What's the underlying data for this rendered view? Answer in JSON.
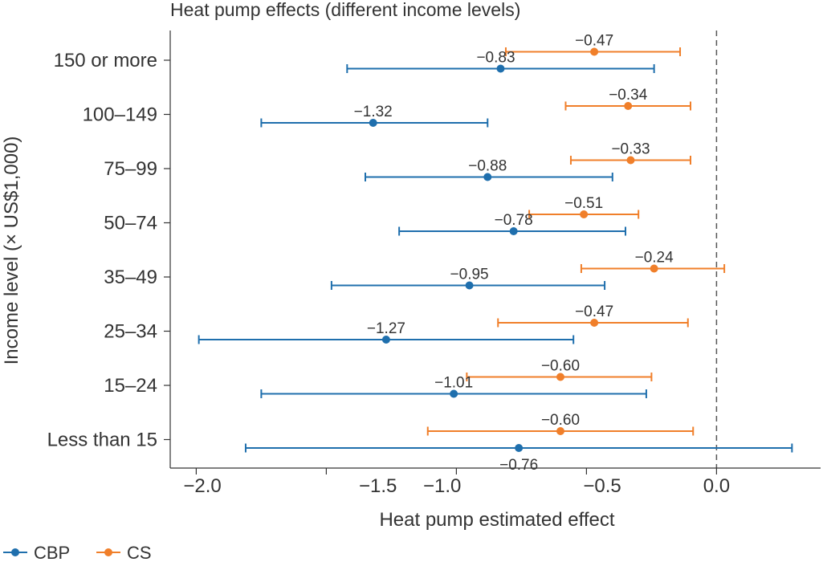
{
  "chart_data": {
    "type": "scatter",
    "title": "Heat pump effects (different income levels)",
    "xlabel": "Heat pump estimated effect",
    "ylabel": "Income level (× US$1,000)",
    "xlim": [
      -2.1,
      0.4
    ],
    "x_tick_labels": [
      {
        "value": -2.0,
        "label": "−2.0"
      },
      {
        "value": -1.5,
        "label": "−1.5"
      },
      {
        "value": -1.0,
        "label": "−1.0"
      },
      {
        "value": -0.5,
        "label": "−0.5"
      },
      {
        "value": 0.0,
        "label": "0.0"
      }
    ],
    "x_tick_marks": [
      -2.0,
      -1.5,
      -1.0,
      -0.5,
      0.0
    ],
    "reference_line": 0.0,
    "categories": [
      "150 or more",
      "100–149",
      "75–99",
      "50–74",
      "35–49",
      "25–34",
      "15–24",
      "Less than 15"
    ],
    "series": [
      {
        "name": "CS",
        "color": "#f07f2a",
        "points": [
          {
            "category": "150 or more",
            "estimate": -0.47,
            "ci_low": -0.81,
            "ci_high": -0.14,
            "label": "−0.47"
          },
          {
            "category": "100–149",
            "estimate": -0.34,
            "ci_low": -0.58,
            "ci_high": -0.1,
            "label": "−0.34"
          },
          {
            "category": "75–99",
            "estimate": -0.33,
            "ci_low": -0.56,
            "ci_high": -0.1,
            "label": "−0.33"
          },
          {
            "category": "50–74",
            "estimate": -0.51,
            "ci_low": -0.72,
            "ci_high": -0.3,
            "label": "−0.51"
          },
          {
            "category": "35–49",
            "estimate": -0.24,
            "ci_low": -0.52,
            "ci_high": 0.03,
            "label": "−0.24"
          },
          {
            "category": "25–34",
            "estimate": -0.47,
            "ci_low": -0.84,
            "ci_high": -0.11,
            "label": "−0.47"
          },
          {
            "category": "15–24",
            "estimate": -0.6,
            "ci_low": -0.96,
            "ci_high": -0.25,
            "label": "−0.60"
          },
          {
            "category": "Less than 15",
            "estimate": -0.6,
            "ci_low": -1.11,
            "ci_high": -0.09,
            "label": "−0.60"
          }
        ]
      },
      {
        "name": "CBP",
        "color": "#1f6fad",
        "points": [
          {
            "category": "150 or more",
            "estimate": -0.83,
            "ci_low": -1.42,
            "ci_high": -0.24,
            "label": "−0.83"
          },
          {
            "category": "100–149",
            "estimate": -1.32,
            "ci_low": -1.75,
            "ci_high": -0.88,
            "label": "−1.32"
          },
          {
            "category": "75–99",
            "estimate": -0.88,
            "ci_low": -1.35,
            "ci_high": -0.4,
            "label": "−0.88"
          },
          {
            "category": "50–74",
            "estimate": -0.78,
            "ci_low": -1.22,
            "ci_high": -0.35,
            "label": "−0.78"
          },
          {
            "category": "35–49",
            "estimate": -0.95,
            "ci_low": -1.48,
            "ci_high": -0.43,
            "label": "−0.95"
          },
          {
            "category": "25–34",
            "estimate": -1.27,
            "ci_low": -1.99,
            "ci_high": -0.55,
            "label": "−1.27"
          },
          {
            "category": "15–24",
            "estimate": -1.01,
            "ci_low": -1.75,
            "ci_high": -0.27,
            "label": "−1.01"
          },
          {
            "category": "Less than 15",
            "estimate": -0.76,
            "ci_low": -1.81,
            "ci_high": 0.29,
            "label": "−0.76"
          }
        ]
      }
    ],
    "legend": {
      "position": "bottom-left",
      "entries": [
        {
          "name": "CBP",
          "color": "#1f6fad"
        },
        {
          "name": "CS",
          "color": "#f07f2a"
        }
      ]
    },
    "grid": false
  }
}
